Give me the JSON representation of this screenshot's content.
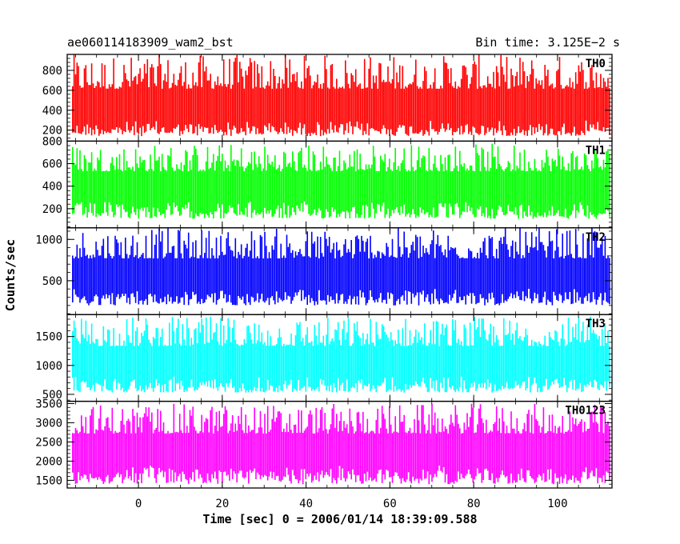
{
  "chart_data": {
    "type": "line",
    "title_left": "ae060114183909_wam2_bst",
    "title_right": "Bin time: 3.125E−2 s",
    "xlabel": "Time [sec] 0 = 2006/01/14 18:39:09.588",
    "ylabel": "Counts/sec",
    "xlim": [
      -17,
      113
    ],
    "x_start": -15.7,
    "x_end": 112.5,
    "x_ticks": [
      0,
      20,
      40,
      60,
      80,
      100
    ],
    "grid": false,
    "panels": [
      {
        "name": "TH0",
        "color": "#ff0000",
        "ylim": [
          90,
          960
        ],
        "mean": 430,
        "low": 140,
        "high": 960,
        "ticks": [
          200,
          400,
          600,
          800
        ]
      },
      {
        "name": "TH1",
        "color": "#00ff00",
        "ylim": [
          30,
          800
        ],
        "mean": 400,
        "low": 110,
        "high": 780,
        "ticks": [
          200,
          400,
          600,
          800
        ]
      },
      {
        "name": "TH2",
        "color": "#0000ff",
        "ylim": [
          90,
          1140
        ],
        "mean": 570,
        "low": 200,
        "high": 1140,
        "ticks": [
          500,
          1000
        ]
      },
      {
        "name": "TH3",
        "color": "#00ffff",
        "ylim": [
          380,
          1880
        ],
        "mean": 1060,
        "low": 530,
        "high": 1850,
        "ticks": [
          500,
          1000,
          1500
        ]
      },
      {
        "name": "TH0123",
        "color": "#ff00ff",
        "ylim": [
          1300,
          3560
        ],
        "mean": 2300,
        "low": 1400,
        "high": 3500,
        "ticks": [
          1500,
          2000,
          2500,
          3000,
          3500
        ]
      }
    ]
  }
}
